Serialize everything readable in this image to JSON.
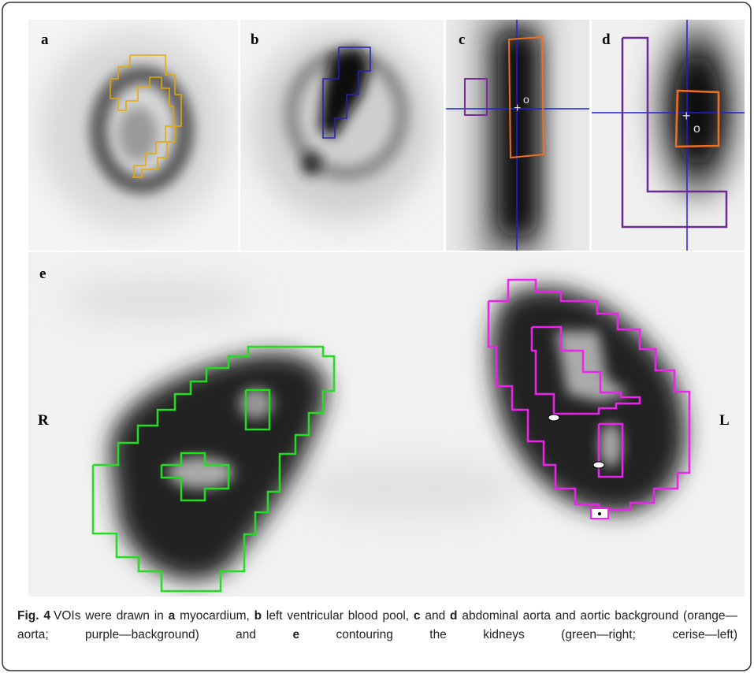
{
  "panels": {
    "a": "a",
    "b": "b",
    "c": "c",
    "d": "d",
    "e": "e",
    "right": "R",
    "left": "L"
  },
  "caption": {
    "label": "Fig. 4",
    "segments": [
      "VOIs were drawn in ",
      "a",
      " myocardium, ",
      "b",
      " left ventricular blood pool, ",
      "c",
      " and ",
      "d",
      " abdominal aorta and aortic background (orange—aorta; purple—background) and ",
      "e",
      " contouring the kidneys (green—right; cerise—left)"
    ]
  }
}
